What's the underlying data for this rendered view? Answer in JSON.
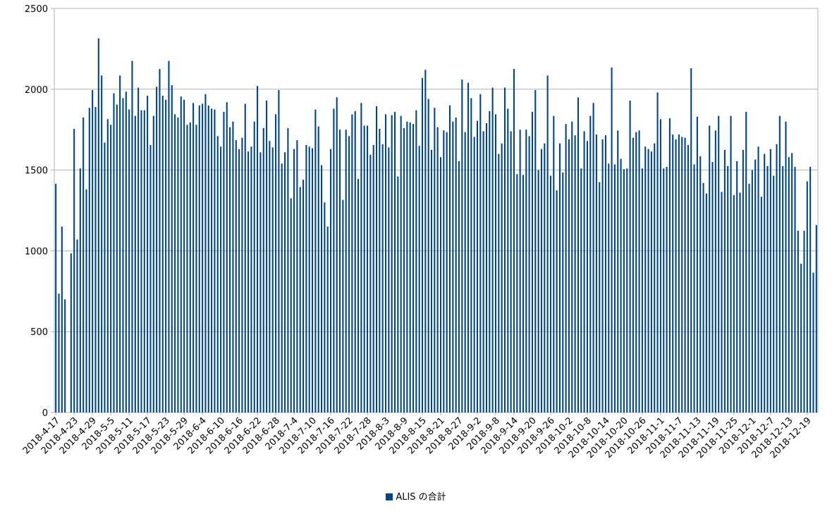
{
  "chart_data": {
    "type": "bar",
    "title": "",
    "xlabel": "",
    "ylabel": "",
    "ylim": [
      0,
      2500
    ],
    "yticks": [
      "0",
      "500",
      "1000",
      "1500",
      "2000",
      "2500"
    ],
    "grid": true,
    "legend": "bottom",
    "series_color": "#004586",
    "x_tick_labels": [
      "2018-4-17",
      "2018-4-23",
      "2018-4-29",
      "2018-5-5",
      "2018-5-11",
      "2018-5-17",
      "2018-5-23",
      "2018-5-29",
      "2018-6-4",
      "2018-6-10",
      "2018-6-16",
      "2018-6-22",
      "2018-6-28",
      "2018-7-4",
      "2018-7-10",
      "2018-7-16",
      "2018-7-22",
      "2018-7-28",
      "2018-8-3",
      "2018-8-9",
      "2018-8-15",
      "2018-8-21",
      "2018-8-27",
      "2018-9-2",
      "2018-9-8",
      "2018-9-14",
      "2018-9-20",
      "2018-9-26",
      "2018-10-2",
      "2018-10-8",
      "2018-10-14",
      "2018-10-20",
      "2018-10-26",
      "2018-11-1",
      "2018-11-7",
      "2018-11-13",
      "2018-11-19",
      "2018-11-25",
      "2018-12-1",
      "2018-12-7",
      "2018-12-13",
      "2018-12-19"
    ],
    "series": [
      {
        "name": "ALIS の合計",
        "values": [
          1415,
          735,
          1150,
          700,
          0,
          985,
          1755,
          1070,
          1510,
          1825,
          1380,
          1885,
          1995,
          1890,
          2315,
          2085,
          1670,
          1815,
          1780,
          1975,
          1905,
          2085,
          1945,
          1985,
          1875,
          2175,
          1835,
          2010,
          1870,
          1870,
          1960,
          1655,
          1835,
          2015,
          2125,
          1960,
          1935,
          2175,
          2025,
          1845,
          1825,
          1955,
          1935,
          1780,
          1795,
          1915,
          1780,
          1900,
          1910,
          1970,
          1900,
          1880,
          1875,
          1710,
          1645,
          1860,
          1920,
          1765,
          1800,
          1685,
          1630,
          1700,
          1910,
          1615,
          1645,
          1800,
          2020,
          1610,
          1760,
          1930,
          1680,
          1640,
          1845,
          1995,
          1540,
          1610,
          1760,
          1325,
          1630,
          1685,
          1395,
          1440,
          1655,
          1645,
          1635,
          1875,
          1770,
          1530,
          1300,
          1150,
          1630,
          1880,
          1950,
          1750,
          1315,
          1750,
          1710,
          1845,
          1865,
          1445,
          1915,
          1775,
          1775,
          1595,
          1655,
          1895,
          1755,
          1660,
          1845,
          1640,
          1840,
          1860,
          1460,
          1835,
          1760,
          1800,
          1795,
          1785,
          1870,
          1650,
          2070,
          2120,
          1940,
          1625,
          1885,
          1765,
          1580,
          1745,
          1735,
          1900,
          1800,
          1825,
          1555,
          2060,
          1735,
          2040,
          1945,
          1705,
          1805,
          1970,
          1740,
          1790,
          1865,
          2010,
          1845,
          1600,
          1665,
          2010,
          1880,
          1740,
          2125,
          1475,
          1750,
          1470,
          1750,
          1710,
          1860,
          1995,
          1500,
          1630,
          1665,
          2085,
          1465,
          1835,
          1375,
          1665,
          1485,
          1785,
          1690,
          1800,
          1715,
          1950,
          1510,
          1740,
          1680,
          1835,
          1915,
          1720,
          1425,
          1690,
          1715,
          1540,
          2135,
          1535,
          1745,
          1570,
          1505,
          1510,
          1930,
          1700,
          1735,
          1745,
          1510,
          1645,
          1630,
          1615,
          1665,
          1980,
          1815,
          1510,
          1520,
          1820,
          1720,
          1690,
          1720,
          1705,
          1700,
          1655,
          2130,
          1535,
          1830,
          1585,
          1420,
          1355,
          1775,
          1550,
          1745,
          1835,
          1365,
          1625,
          1525,
          1835,
          1345,
          1555,
          1360,
          1625,
          1860,
          1415,
          1500,
          1565,
          1645,
          1335,
          1600,
          1525,
          1630,
          1465,
          1660,
          1835,
          1525,
          1800,
          1580,
          1605,
          1520,
          1125,
          920,
          1125,
          1430,
          1520,
          865,
          1160
        ]
      }
    ]
  },
  "legend_label": "ALIS の合計"
}
